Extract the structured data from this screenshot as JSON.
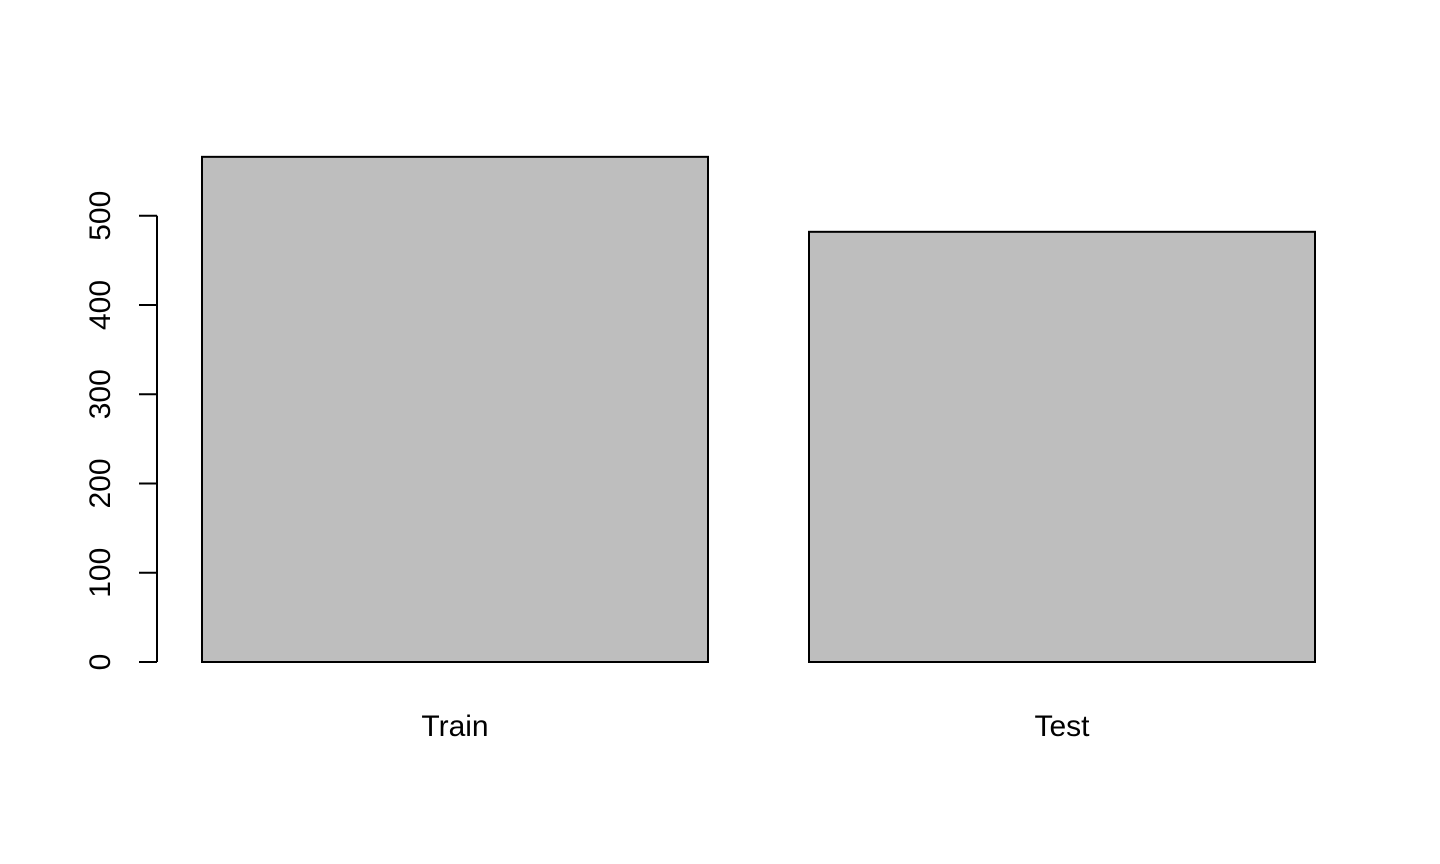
{
  "chart_data": {
    "type": "bar",
    "categories": [
      "Train",
      "Test"
    ],
    "values": [
      566,
      482
    ],
    "title": "",
    "xlabel": "",
    "ylabel": "",
    "ylim": [
      0,
      566
    ],
    "yticks": [
      0,
      100,
      200,
      300,
      400,
      500
    ],
    "ytick_labels": [
      "0",
      "100",
      "200",
      "300",
      "400",
      "500"
    ],
    "bar_fill": "#bebebe",
    "bar_stroke": "#000000",
    "grid": false,
    "legend": "none"
  }
}
